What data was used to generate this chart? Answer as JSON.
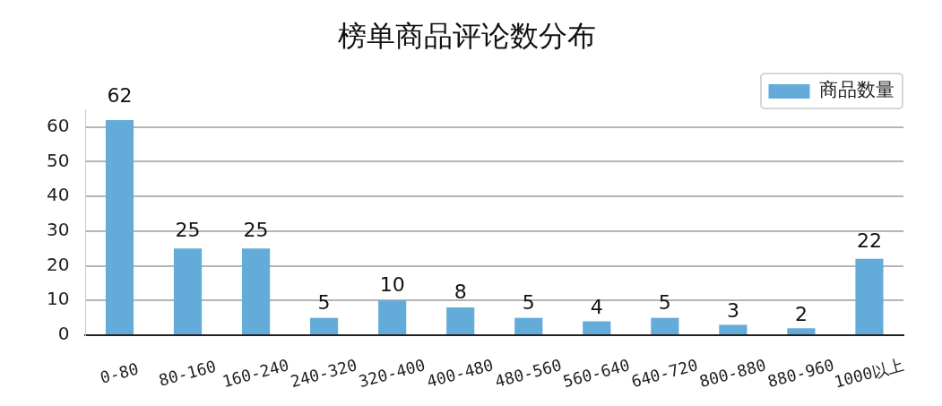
{
  "chart_data": {
    "type": "bar",
    "title": "榜单商品评论数分布",
    "categories": [
      "0-80",
      "80-160",
      "160-240",
      "240-320",
      "320-400",
      "400-480",
      "480-560",
      "560-640",
      "640-720",
      "800-880",
      "880-960",
      "1000以上"
    ],
    "series": [
      {
        "name": "商品数量",
        "color": "#63acd9",
        "values": [
          62,
          25,
          25,
          5,
          10,
          8,
          5,
          4,
          5,
          3,
          2,
          22
        ]
      }
    ],
    "ylim": [
      0,
      65
    ],
    "yticks": [
      0,
      10,
      20,
      30,
      40,
      50,
      60
    ],
    "grid": "y",
    "legend": "top right",
    "data_labels": true
  }
}
